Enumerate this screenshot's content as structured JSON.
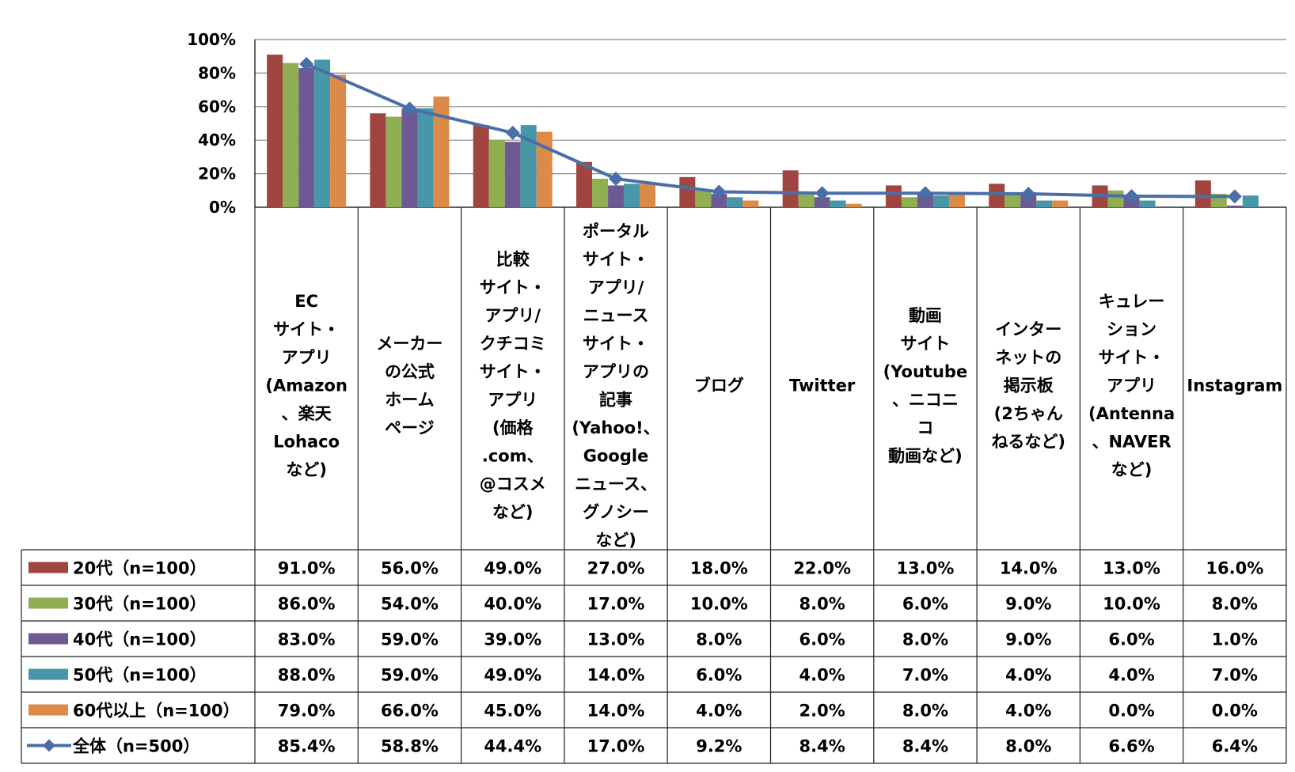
{
  "chart_data": {
    "type": "bar",
    "ylim": [
      0,
      100
    ],
    "yticks": [
      "100%",
      "80%",
      "60%",
      "40%",
      "20%",
      "0%"
    ],
    "categories": [
      [
        "EC",
        "サイト・",
        "アプリ",
        "(Amazon",
        "、楽天",
        "Lohaco",
        "など)"
      ],
      [
        "メーカー",
        "の公式",
        "ホーム",
        "ページ"
      ],
      [
        "比較",
        "サイト・",
        "アプリ/",
        "クチコミ",
        "サイト・",
        "アプリ",
        "(価格",
        ".com、",
        "@コスメ",
        "など)"
      ],
      [
        "ポータル",
        "サイト・",
        "アプリ/",
        "ニュース",
        "サイト・",
        "アプリの",
        "記事",
        "(Yahoo!、",
        "Google",
        "ニュース、",
        "グノシー",
        "など)"
      ],
      [
        "ブログ"
      ],
      [
        "Twitter"
      ],
      [
        "動画",
        "サイト",
        "(Youtube",
        "、ニコニ",
        "コ",
        "動画など)"
      ],
      [
        "インター",
        "ネットの",
        "掲示板",
        "(2ちゃん",
        "ねるなど)"
      ],
      [
        "キュレー",
        "ション",
        "サイト・",
        "アプリ",
        "(Antenna",
        "、NAVER",
        "など)"
      ],
      [
        "Instagram"
      ]
    ],
    "series": [
      {
        "name": "20代（n=100）",
        "kind": "bar",
        "color": "#A0453F",
        "values": [
          91.0,
          56.0,
          49.0,
          27.0,
          18.0,
          22.0,
          13.0,
          14.0,
          13.0,
          16.0
        ],
        "labels": [
          "91.0%",
          "56.0%",
          "49.0%",
          "27.0%",
          "18.0%",
          "22.0%",
          "13.0%",
          "14.0%",
          "13.0%",
          "16.0%"
        ]
      },
      {
        "name": "30代（n=100）",
        "kind": "bar",
        "color": "#8FAF52",
        "values": [
          86.0,
          54.0,
          40.0,
          17.0,
          10.0,
          8.0,
          6.0,
          9.0,
          10.0,
          8.0
        ],
        "labels": [
          "86.0%",
          "54.0%",
          "40.0%",
          "17.0%",
          "10.0%",
          "8.0%",
          "6.0%",
          "9.0%",
          "10.0%",
          "8.0%"
        ]
      },
      {
        "name": "40代（n=100）",
        "kind": "bar",
        "color": "#6E5A93",
        "values": [
          83.0,
          59.0,
          39.0,
          13.0,
          8.0,
          6.0,
          8.0,
          9.0,
          6.0,
          1.0
        ],
        "labels": [
          "83.0%",
          "59.0%",
          "39.0%",
          "13.0%",
          "8.0%",
          "6.0%",
          "8.0%",
          "9.0%",
          "6.0%",
          "1.0%"
        ]
      },
      {
        "name": "50代（n=100）",
        "kind": "bar",
        "color": "#4797A9",
        "values": [
          88.0,
          59.0,
          49.0,
          14.0,
          6.0,
          4.0,
          7.0,
          4.0,
          4.0,
          7.0
        ],
        "labels": [
          "88.0%",
          "59.0%",
          "49.0%",
          "14.0%",
          "6.0%",
          "4.0%",
          "7.0%",
          "4.0%",
          "4.0%",
          "7.0%"
        ]
      },
      {
        "name": "60代以上（n=100）",
        "kind": "bar",
        "color": "#DB8A47",
        "values": [
          79.0,
          66.0,
          45.0,
          14.0,
          4.0,
          2.0,
          8.0,
          4.0,
          0.0,
          0.0
        ],
        "labels": [
          "79.0%",
          "66.0%",
          "45.0%",
          "14.0%",
          "4.0%",
          "2.0%",
          "8.0%",
          "4.0%",
          "0.0%",
          "0.0%"
        ]
      },
      {
        "name": "全体（n=500）",
        "kind": "line",
        "color": "#4A6FA8",
        "values": [
          85.4,
          58.8,
          44.4,
          17.0,
          9.2,
          8.4,
          8.4,
          8.0,
          6.6,
          6.4
        ],
        "labels": [
          "85.4%",
          "58.8%",
          "44.4%",
          "17.0%",
          "9.2%",
          "8.4%",
          "8.4%",
          "8.0%",
          "6.6%",
          "6.4%"
        ]
      }
    ],
    "grid": true,
    "legend": "table-left"
  }
}
